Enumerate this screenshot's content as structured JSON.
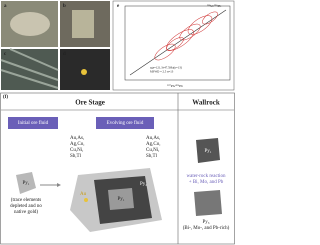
{
  "panels": {
    "a": "a",
    "b": "b",
    "c": "c",
    "d": "d",
    "e": "e",
    "f": "(f)"
  },
  "plot": {
    "x_label": "²⁰⁷Pb/²⁰⁶Pb",
    "y_label": "²³⁸U/²⁰⁶Pb",
    "inset": [
      "age=121.3±47.5Ma(n=13)",
      "MSWD = 2.5 n=13"
    ]
  },
  "schematic": {
    "header": {
      "ore_stage": "Ore Stage",
      "wallrock": "Wallrock"
    },
    "initial_fluid": "Initial ore fluid",
    "evolving_fluid": "Evolving ore fluid",
    "elements_1": [
      "Au,As,",
      "Ag,Co,",
      "Cu,Ni,",
      "Sb,Tl"
    ],
    "elements_2": [
      "Au,As,",
      "Ag,Co,",
      "Cu,Ni,",
      "Sb,Tl"
    ],
    "py1_label": "Py₁",
    "py1_note": [
      "(trace elements",
      "depleted and no",
      "native gold)"
    ],
    "py1_inner": "Py₁",
    "py2_label": "Py₂",
    "au_label": "Au",
    "wall_py": "Py₁",
    "reaction": [
      "water-rock reaction",
      "+ Bi, Mo, and Pb"
    ],
    "py3_label": "Py₃",
    "py3_note": "(Bi-, Mo-, and Pb-rich)"
  }
}
